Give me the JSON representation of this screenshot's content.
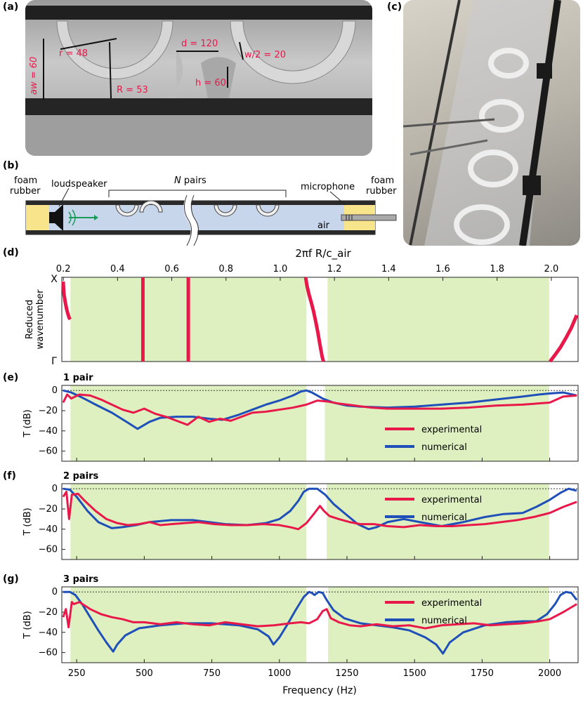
{
  "panels": {
    "a": "(a)",
    "b": "(b)",
    "c": "(c)",
    "d": "(d)",
    "e": "(e)",
    "f": "(f)",
    "g": "(g)"
  },
  "photo_a": {
    "labels": {
      "r": "r = 48",
      "R": "R = 53",
      "d": "d = 120",
      "w": "w/2 = 20",
      "h": "h = 60",
      "aw": "aw = 60"
    }
  },
  "schematic": {
    "foam_left": "foam rubber",
    "loudspeaker": "loudspeaker",
    "npairs": "N pairs",
    "microphone": "microphone",
    "foam_right": "foam rubber",
    "air": "air"
  },
  "colors": {
    "experimental": "#e8194a",
    "numerical": "#1f4fb8",
    "band": "#dff0c0"
  },
  "chart_data": [
    {
      "type": "line",
      "panel": "d",
      "top_axis_label": "2πf R/c_air",
      "top_ticks": [
        "0.2",
        "0.4",
        "0.6",
        "0.8",
        "1.0",
        "1.2",
        "1.4",
        "1.6",
        "1.8",
        "2.0"
      ],
      "ylabel": "Reduced wavenumber",
      "ytick_top": "X",
      "ytick_bottom": "Γ",
      "xlim": [
        195,
        2105
      ],
      "bands": [
        [
          227,
          1100
        ],
        [
          1178,
          1998
        ]
      ],
      "series": [
        {
          "segment": "edge-left",
          "x": [
            200,
            203,
            208,
            213,
            218,
            222,
            226
          ],
          "y": [
            0.95,
            0.8,
            0.7,
            0.62,
            0.56,
            0.52,
            0.5
          ]
        },
        {
          "segment": "flat-1",
          "x": [
            495,
            495
          ],
          "y": [
            0,
            1
          ]
        },
        {
          "segment": "flat-2",
          "x": [
            663,
            663
          ],
          "y": [
            0,
            1
          ]
        },
        {
          "segment": "gap-1",
          "x": [
            1097,
            1102,
            1110,
            1118,
            1126,
            1134,
            1142,
            1150,
            1158,
            1163
          ],
          "y": [
            1,
            0.9,
            0.79,
            0.7,
            0.6,
            0.48,
            0.35,
            0.2,
            0.06,
            0
          ]
        },
        {
          "segment": "edge-right",
          "x": [
            2001,
            2020,
            2040,
            2060,
            2080,
            2100
          ],
          "y": [
            0,
            0.08,
            0.17,
            0.28,
            0.4,
            0.55
          ]
        }
      ]
    },
    {
      "type": "line",
      "panel": "e",
      "subtitle": "1 pair",
      "ylabel": "T (dB)",
      "ylim": [
        -70,
        5
      ],
      "yticks": [
        0,
        -20,
        -40,
        -60
      ],
      "xlim": [
        195,
        2105
      ],
      "bands": [
        [
          227,
          1100
        ],
        [
          1168,
          1998
        ]
      ],
      "legend": [
        "experimental",
        "numerical"
      ],
      "series": [
        {
          "name": "numerical",
          "x": [
            200,
            230,
            270,
            320,
            380,
            440,
            475,
            520,
            560,
            620,
            680,
            740,
            790,
            850,
            900,
            950,
            1000,
            1050,
            1080,
            1100,
            1120,
            1160,
            1200,
            1250,
            1300,
            1400,
            1500,
            1600,
            1700,
            1800,
            1900,
            1960,
            2000,
            2050,
            2100
          ],
          "y": [
            0,
            -2,
            -7,
            -14,
            -22,
            -32,
            -38,
            -31,
            -27,
            -26,
            -26,
            -28,
            -29,
            -24,
            -19,
            -14,
            -10,
            -5,
            -1,
            0,
            -2,
            -8,
            -12,
            -15,
            -16,
            -17,
            -16,
            -14,
            -12,
            -9,
            -6,
            -4,
            -3,
            -2,
            -5
          ]
        },
        {
          "name": "experimental",
          "x": [
            200,
            215,
            230,
            260,
            300,
            340,
            380,
            420,
            460,
            500,
            540,
            580,
            620,
            660,
            700,
            740,
            780,
            820,
            860,
            900,
            950,
            1000,
            1050,
            1100,
            1140,
            1180,
            1220,
            1280,
            1340,
            1400,
            1500,
            1600,
            1700,
            1800,
            1900,
            2000,
            2050,
            2100
          ],
          "y": [
            -12,
            -4,
            -8,
            -4,
            -5,
            -9,
            -14,
            -19,
            -22,
            -18,
            -23,
            -26,
            -30,
            -34,
            -26,
            -31,
            -28,
            -30,
            -26,
            -22,
            -21,
            -19,
            -17,
            -14,
            -10,
            -11,
            -13,
            -15,
            -17,
            -18,
            -18,
            -18,
            -17,
            -15,
            -14,
            -12,
            -6,
            -5
          ]
        }
      ]
    },
    {
      "type": "line",
      "panel": "f",
      "subtitle": "2 pairs",
      "ylabel": "T (dB)",
      "ylim": [
        -70,
        5
      ],
      "yticks": [
        0,
        -20,
        -40,
        -60
      ],
      "xlim": [
        195,
        2105
      ],
      "bands": [
        [
          227,
          1100
        ],
        [
          1175,
          1998
        ]
      ],
      "legend": [
        "experimental",
        "numerical"
      ],
      "series": [
        {
          "name": "numerical",
          "x": [
            200,
            225,
            250,
            290,
            330,
            380,
            420,
            470,
            520,
            600,
            680,
            740,
            800,
            880,
            950,
            1000,
            1040,
            1070,
            1090,
            1110,
            1140,
            1170,
            1200,
            1240,
            1290,
            1330,
            1360,
            1400,
            1460,
            1520,
            1600,
            1680,
            1760,
            1830,
            1900,
            1950,
            2000,
            2040,
            2070,
            2100
          ],
          "y": [
            0,
            -1,
            -8,
            -22,
            -33,
            -39,
            -38,
            -36,
            -33,
            -31,
            -31,
            -33,
            -35,
            -36,
            -34,
            -30,
            -22,
            -12,
            -3,
            0,
            0,
            -6,
            -15,
            -24,
            -35,
            -40,
            -38,
            -33,
            -30,
            -33,
            -37,
            -33,
            -28,
            -25,
            -24,
            -18,
            -11,
            -4,
            0,
            -2
          ]
        },
        {
          "name": "experimental",
          "x": [
            200,
            212,
            222,
            232,
            255,
            280,
            320,
            360,
            400,
            440,
            480,
            520,
            560,
            600,
            650,
            700,
            760,
            820,
            880,
            940,
            1000,
            1040,
            1070,
            1100,
            1130,
            1150,
            1165,
            1185,
            1220,
            1260,
            1300,
            1350,
            1400,
            1460,
            1520,
            1580,
            1640,
            1700,
            1760,
            1820,
            1880,
            1940,
            2000,
            2050,
            2100
          ],
          "y": [
            -8,
            -3,
            -30,
            -6,
            -5,
            -12,
            -22,
            -30,
            -34,
            -36,
            -35,
            -33,
            -36,
            -35,
            -34,
            -33,
            -35,
            -36,
            -36,
            -35,
            -36,
            -38,
            -40,
            -34,
            -24,
            -17,
            -22,
            -27,
            -30,
            -33,
            -35,
            -35,
            -37,
            -38,
            -36,
            -37,
            -37,
            -36,
            -35,
            -33,
            -31,
            -28,
            -24,
            -18,
            -13
          ]
        }
      ]
    },
    {
      "type": "line",
      "panel": "g",
      "subtitle": "3 pairs",
      "ylabel": "T (dB)",
      "xlabel": "Frequency (Hz)",
      "ylim": [
        -70,
        5
      ],
      "yticks": [
        0,
        -20,
        -40,
        -60
      ],
      "xticks": [
        250,
        500,
        750,
        1000,
        1250,
        1500,
        1750,
        2000
      ],
      "xlim": [
        195,
        2105
      ],
      "bands": [
        [
          227,
          1100
        ],
        [
          1180,
          1998
        ]
      ],
      "legend": [
        "experimental",
        "numerical"
      ],
      "series": [
        {
          "name": "numerical",
          "x": [
            200,
            225,
            245,
            270,
            300,
            330,
            360,
            385,
            400,
            430,
            480,
            560,
            650,
            750,
            850,
            920,
            960,
            978,
            1000,
            1030,
            1060,
            1090,
            1110,
            1120,
            1130,
            1145,
            1160,
            1175,
            1200,
            1240,
            1300,
            1360,
            1420,
            1480,
            1540,
            1580,
            1605,
            1630,
            1680,
            1760,
            1840,
            1900,
            1950,
            1990,
            2020,
            2040,
            2060,
            2080,
            2100
          ],
          "y": [
            0,
            0,
            -3,
            -12,
            -25,
            -38,
            -50,
            -59,
            -52,
            -43,
            -36,
            -33,
            -31,
            -31,
            -33,
            -37,
            -44,
            -52,
            -45,
            -32,
            -18,
            -5,
            0,
            -1,
            -3,
            0,
            -1,
            -8,
            -18,
            -26,
            -31,
            -33,
            -35,
            -38,
            -45,
            -52,
            -61,
            -50,
            -40,
            -33,
            -30,
            -29,
            -29,
            -22,
            -12,
            -3,
            0,
            -1,
            -8
          ]
        },
        {
          "name": "experimental",
          "x": [
            200,
            210,
            220,
            232,
            240,
            260,
            300,
            340,
            380,
            420,
            460,
            500,
            560,
            620,
            680,
            740,
            800,
            860,
            920,
            980,
            1040,
            1080,
            1110,
            1140,
            1160,
            1175,
            1190,
            1220,
            1260,
            1300,
            1360,
            1420,
            1480,
            1540,
            1600,
            1660,
            1720,
            1780,
            1840,
            1900,
            1960,
            2000,
            2050,
            2100
          ],
          "y": [
            -25,
            -17,
            -35,
            -10,
            -12,
            -10,
            -17,
            -22,
            -25,
            -27,
            -30,
            -30,
            -32,
            -30,
            -32,
            -33,
            -30,
            -32,
            -34,
            -33,
            -31,
            -30,
            -31,
            -27,
            -19,
            -17,
            -26,
            -30,
            -33,
            -34,
            -32,
            -34,
            -33,
            -36,
            -33,
            -32,
            -31,
            -33,
            -32,
            -31,
            -29,
            -27,
            -20,
            -12
          ]
        }
      ]
    }
  ]
}
